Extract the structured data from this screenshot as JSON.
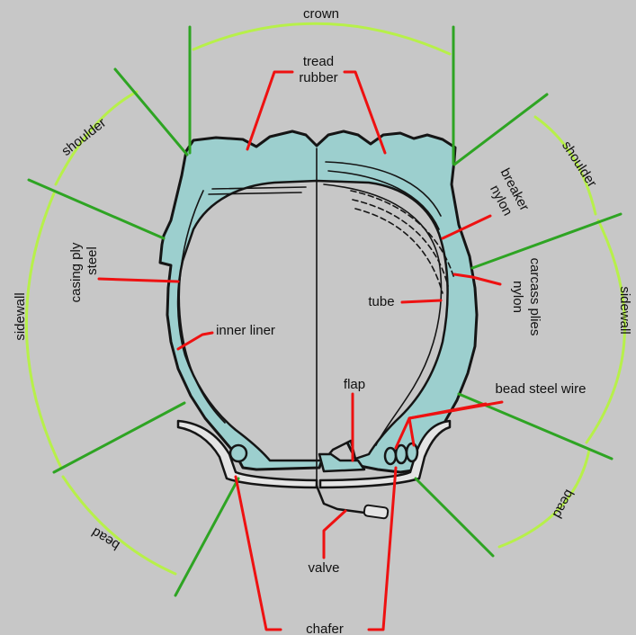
{
  "labels": {
    "crown": "crown",
    "tread_rubber_1": "tread",
    "tread_rubber_2": "rubber",
    "shoulder_left": "shoulder",
    "shoulder_right": "shoulder",
    "breaker_1": "breaker",
    "breaker_2": "nylon",
    "casing_ply_1": "casing ply",
    "casing_ply_2": "steel",
    "sidewall_left": "sidewall",
    "sidewall_right": "sidewall",
    "carcass_1": "carcass plies",
    "carcass_2": "nylon",
    "tube": "tube",
    "inner_liner": "inner liner",
    "flap": "flap",
    "bead_steel_wire": "bead steel wire",
    "bead_left": "bead",
    "bead_right": "bead",
    "valve": "valve",
    "chafer": "chafer"
  },
  "colors": {
    "background": "#c7c7c7",
    "tire": "#9ccfce",
    "outline": "#151515",
    "leader": "#ee1111",
    "region_arc": "#b7f04a",
    "region_boundary": "#2ea423"
  }
}
